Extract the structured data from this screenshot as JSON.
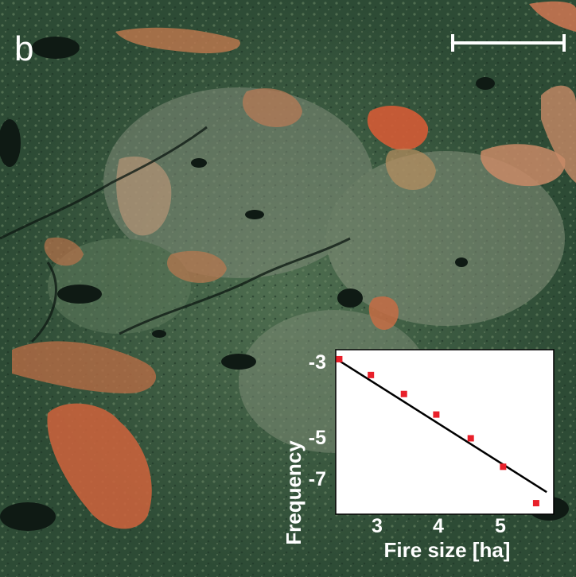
{
  "panel": {
    "letter": "b"
  },
  "scale_bar": {
    "color": "#ffffff"
  },
  "inset": {
    "chart_data": {
      "type": "scatter",
      "xlabel": "Fire size [ha]",
      "ylabel": "Frequency",
      "x_ticks": [
        "3",
        "4",
        "5"
      ],
      "y_ticks": [
        "-3",
        "-5",
        "-7"
      ],
      "xlim": [
        2.5,
        5.6
      ],
      "ylim": [
        -8.0,
        -2.8
      ],
      "points": [
        {
          "x": 2.55,
          "y": -3.1
        },
        {
          "x": 3.0,
          "y": -3.6
        },
        {
          "x": 3.47,
          "y": -4.2
        },
        {
          "x": 3.93,
          "y": -4.85
        },
        {
          "x": 4.42,
          "y": -5.6
        },
        {
          "x": 4.88,
          "y": -6.5
        },
        {
          "x": 5.35,
          "y": -7.65
        }
      ],
      "fit_line": {
        "x": [
          2.55,
          5.5
        ],
        "y": [
          -3.15,
          -7.3
        ]
      },
      "point_color": "#e8202a",
      "line_color": "#000000"
    }
  }
}
